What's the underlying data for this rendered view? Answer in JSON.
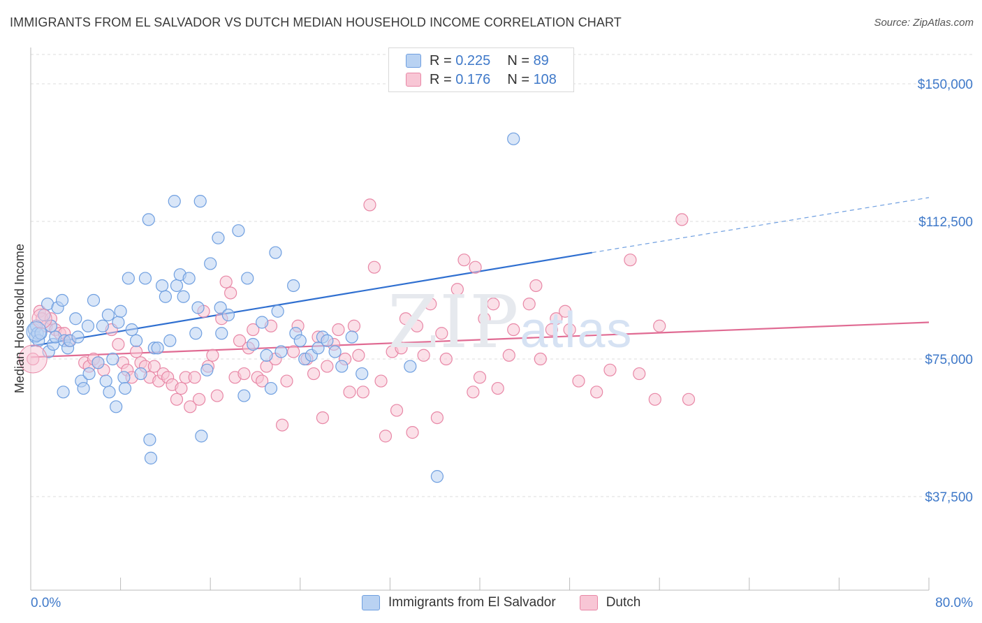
{
  "title": "IMMIGRANTS FROM EL SALVADOR VS DUTCH MEDIAN HOUSEHOLD INCOME CORRELATION CHART",
  "source": "Source: ZipAtlas.com",
  "watermark": {
    "zip": "ZIP",
    "atlas": "atlas"
  },
  "legend": {
    "rows": [
      {
        "r_label": "R = ",
        "r_value": "0.225",
        "n_label": "N = ",
        "n_value": " 89",
        "color": "#a9c8f0"
      },
      {
        "r_label": "R = ",
        "r_value": " 0.176",
        "n_label": "N = ",
        "n_value": "108",
        "color": "#f7b9cc"
      }
    ]
  },
  "chart_data": {
    "type": "scatter",
    "title": "IMMIGRANTS FROM EL SALVADOR VS DUTCH MEDIAN HOUSEHOLD INCOME CORRELATION CHART",
    "xlabel": "",
    "ylabel": "Median Household Income",
    "xlim": [
      0,
      80
    ],
    "ylim": [
      12000,
      158000
    ],
    "x_tick_labels": [
      "0.0%",
      "80.0%"
    ],
    "y_ticks": [
      37500,
      75000,
      112500,
      150000
    ],
    "y_tick_labels": [
      "$37,500",
      "$75,000",
      "$112,500",
      "$150,000"
    ],
    "grid": "horizontal dashed",
    "series": [
      {
        "name": "Immigrants from El Salvador",
        "color": "#6f9fe0",
        "fill": "#b9d2f2",
        "trend": {
          "x0": 0,
          "y0": 78500,
          "x1": 50,
          "y1": 104000,
          "dashed_to_x": 80,
          "dashed_to_y": 119000
        },
        "points": [
          [
            0.3,
            83
          ],
          [
            0.4,
            81
          ],
          [
            0.5,
            84
          ],
          [
            0.6,
            82
          ],
          [
            0.7,
            80
          ],
          [
            0.9,
            82
          ],
          [
            1.2,
            87
          ],
          [
            1.5,
            90
          ],
          [
            1.6,
            77
          ],
          [
            1.8,
            84
          ],
          [
            2.0,
            79
          ],
          [
            2.2,
            81
          ],
          [
            2.4,
            89
          ],
          [
            2.8,
            91
          ],
          [
            2.9,
            66
          ],
          [
            3.0,
            80
          ],
          [
            3.3,
            78
          ],
          [
            3.5,
            80
          ],
          [
            4.0,
            86
          ],
          [
            4.2,
            81
          ],
          [
            4.5,
            69
          ],
          [
            4.7,
            67
          ],
          [
            5.1,
            84
          ],
          [
            5.2,
            71
          ],
          [
            5.6,
            91
          ],
          [
            6.0,
            74
          ],
          [
            6.4,
            84
          ],
          [
            6.7,
            69
          ],
          [
            6.9,
            87
          ],
          [
            7.0,
            66
          ],
          [
            7.3,
            75
          ],
          [
            7.6,
            62
          ],
          [
            7.8,
            85
          ],
          [
            8.0,
            88
          ],
          [
            8.3,
            70
          ],
          [
            8.4,
            67
          ],
          [
            8.7,
            97
          ],
          [
            9.0,
            83
          ],
          [
            9.4,
            80
          ],
          [
            9.8,
            71
          ],
          [
            10.2,
            97
          ],
          [
            10.5,
            113
          ],
          [
            10.6,
            53
          ],
          [
            10.7,
            48
          ],
          [
            11.0,
            78
          ],
          [
            11.3,
            78
          ],
          [
            11.7,
            95
          ],
          [
            12.0,
            92
          ],
          [
            12.4,
            80
          ],
          [
            12.8,
            118
          ],
          [
            13.0,
            95
          ],
          [
            13.3,
            98
          ],
          [
            13.6,
            92
          ],
          [
            14.1,
            97
          ],
          [
            14.7,
            82
          ],
          [
            14.9,
            89
          ],
          [
            15.1,
            118
          ],
          [
            15.2,
            54
          ],
          [
            15.7,
            72
          ],
          [
            16.0,
            101
          ],
          [
            16.7,
            108
          ],
          [
            16.9,
            89
          ],
          [
            17.0,
            82
          ],
          [
            17.6,
            87
          ],
          [
            18.5,
            110
          ],
          [
            19.0,
            65
          ],
          [
            19.3,
            97
          ],
          [
            19.8,
            79
          ],
          [
            20.6,
            85
          ],
          [
            21.0,
            76
          ],
          [
            21.4,
            67
          ],
          [
            21.8,
            104
          ],
          [
            22.0,
            88
          ],
          [
            22.3,
            77
          ],
          [
            23.4,
            95
          ],
          [
            23.6,
            82
          ],
          [
            24.0,
            80
          ],
          [
            24.4,
            75
          ],
          [
            25.0,
            76
          ],
          [
            25.6,
            78
          ],
          [
            26.0,
            81
          ],
          [
            26.4,
            80
          ],
          [
            27.1,
            77
          ],
          [
            27.7,
            73
          ],
          [
            28.6,
            81
          ],
          [
            29.5,
            71
          ],
          [
            33.8,
            73
          ],
          [
            36.2,
            43
          ],
          [
            43.0,
            135
          ]
        ]
      },
      {
        "name": "Dutch",
        "color": "#e887a6",
        "fill": "#f8c6d5",
        "trend": {
          "x0": 0,
          "y0": 75500,
          "x1": 80,
          "y1": 85000
        },
        "points": [
          [
            0.2,
            75
          ],
          [
            0.8,
            88
          ],
          [
            1.0,
            86
          ],
          [
            1.4,
            84
          ],
          [
            1.8,
            86
          ],
          [
            2.2,
            83
          ],
          [
            2.6,
            82
          ],
          [
            3.0,
            82
          ],
          [
            3.4,
            80
          ],
          [
            4.8,
            74
          ],
          [
            5.2,
            73
          ],
          [
            5.6,
            75
          ],
          [
            6.0,
            74
          ],
          [
            6.5,
            72
          ],
          [
            7.2,
            83
          ],
          [
            7.8,
            79
          ],
          [
            8.2,
            74
          ],
          [
            8.6,
            72
          ],
          [
            9.0,
            70
          ],
          [
            9.4,
            77
          ],
          [
            9.8,
            74
          ],
          [
            10.2,
            73
          ],
          [
            10.6,
            70
          ],
          [
            11.0,
            73
          ],
          [
            11.4,
            69
          ],
          [
            11.8,
            71
          ],
          [
            12.2,
            70
          ],
          [
            12.6,
            68
          ],
          [
            13.0,
            64
          ],
          [
            13.4,
            67
          ],
          [
            13.8,
            70
          ],
          [
            14.2,
            62
          ],
          [
            14.6,
            70
          ],
          [
            15.0,
            64
          ],
          [
            15.4,
            88
          ],
          [
            15.8,
            73
          ],
          [
            16.2,
            76
          ],
          [
            16.6,
            65
          ],
          [
            17.0,
            86
          ],
          [
            17.4,
            96
          ],
          [
            17.8,
            93
          ],
          [
            18.2,
            70
          ],
          [
            18.6,
            80
          ],
          [
            19.0,
            71
          ],
          [
            19.4,
            78
          ],
          [
            19.8,
            83
          ],
          [
            20.2,
            70
          ],
          [
            20.6,
            69
          ],
          [
            21.0,
            73
          ],
          [
            21.4,
            84
          ],
          [
            21.8,
            75
          ],
          [
            22.4,
            57
          ],
          [
            22.8,
            69
          ],
          [
            23.4,
            77
          ],
          [
            23.8,
            84
          ],
          [
            24.6,
            75
          ],
          [
            25.2,
            71
          ],
          [
            25.6,
            81
          ],
          [
            26.0,
            59
          ],
          [
            26.4,
            73
          ],
          [
            27.0,
            79
          ],
          [
            27.4,
            83
          ],
          [
            28.0,
            75
          ],
          [
            28.4,
            66
          ],
          [
            28.8,
            84
          ],
          [
            29.2,
            76
          ],
          [
            29.6,
            66
          ],
          [
            30.2,
            117
          ],
          [
            30.6,
            100
          ],
          [
            31.2,
            69
          ],
          [
            31.6,
            54
          ],
          [
            32.2,
            77
          ],
          [
            32.6,
            61
          ],
          [
            33.0,
            78
          ],
          [
            33.4,
            86
          ],
          [
            34.0,
            55
          ],
          [
            34.4,
            84
          ],
          [
            35.0,
            76
          ],
          [
            35.6,
            90
          ],
          [
            36.2,
            59
          ],
          [
            36.6,
            82
          ],
          [
            37.0,
            75
          ],
          [
            38.0,
            94
          ],
          [
            38.6,
            102
          ],
          [
            39.4,
            66
          ],
          [
            39.6,
            100
          ],
          [
            40.0,
            70
          ],
          [
            40.4,
            86
          ],
          [
            41.2,
            90
          ],
          [
            41.6,
            67
          ],
          [
            42.6,
            76
          ],
          [
            43.0,
            83
          ],
          [
            44.4,
            90
          ],
          [
            45.0,
            95
          ],
          [
            45.4,
            75
          ],
          [
            46.4,
            83
          ],
          [
            46.8,
            86
          ],
          [
            47.6,
            88
          ],
          [
            48.0,
            83
          ],
          [
            48.8,
            69
          ],
          [
            50.4,
            66
          ],
          [
            51.6,
            72
          ],
          [
            53.4,
            102
          ],
          [
            54.2,
            71
          ],
          [
            55.6,
            64
          ],
          [
            56.0,
            84
          ],
          [
            58.0,
            113
          ],
          [
            58.6,
            64
          ]
        ]
      }
    ]
  },
  "bottom_legend": [
    {
      "label": "Immigrants from El Salvador",
      "color": "#b9d2f2",
      "border": "#6f9fe0"
    },
    {
      "label": "Dutch",
      "color": "#f8c6d5",
      "border": "#e887a6"
    }
  ]
}
